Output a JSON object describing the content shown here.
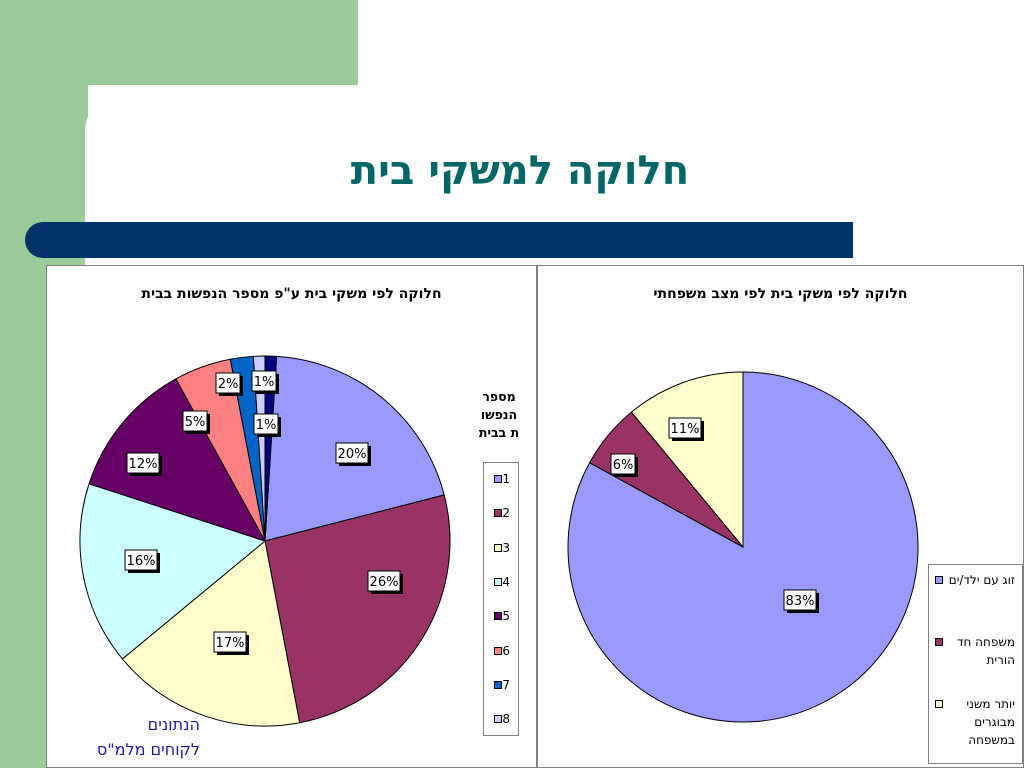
{
  "slide": {
    "title": "חלוקה למשקי בית",
    "source_note": [
      "הנתונים",
      "לקוחים  מלמ\"ס"
    ]
  },
  "chart_data": [
    {
      "type": "pie",
      "title": "חלוקה לפי משקי בית ע\"פ מספר הנפשות בבית",
      "legend_title": [
        "מספר",
        "הנפשו",
        "ת בבית"
      ],
      "legend_position": "right",
      "categories": [
        "1",
        "2",
        "3",
        "4",
        "5",
        "6",
        "7",
        "8"
      ],
      "values": [
        20,
        26,
        17,
        16,
        12,
        5,
        2,
        1
      ],
      "data_labels": [
        "20%",
        "26%",
        "17%",
        "16%",
        "12%",
        "5%",
        "2%",
        "1%"
      ],
      "extra_label": "1%",
      "colors": [
        "#9999ff",
        "#993366",
        "#ffffcc",
        "#ccffff",
        "#660066",
        "#ff8080",
        "#0066cc",
        "#ccccff"
      ],
      "dark_slice_color": "#000080"
    },
    {
      "type": "pie",
      "title": "חלוקה לפי משקי בית לפי מצב משפחתי",
      "legend_position": "right",
      "categories": [
        "זוג עם ילד/ים",
        "משפחה חד הורית",
        "יותר משני מבוגרים במשפחה"
      ],
      "values": [
        83,
        6,
        11
      ],
      "data_labels": [
        "83%",
        "6%",
        "11%"
      ],
      "colors": [
        "#9999ff",
        "#993366",
        "#ffffcc"
      ]
    }
  ]
}
